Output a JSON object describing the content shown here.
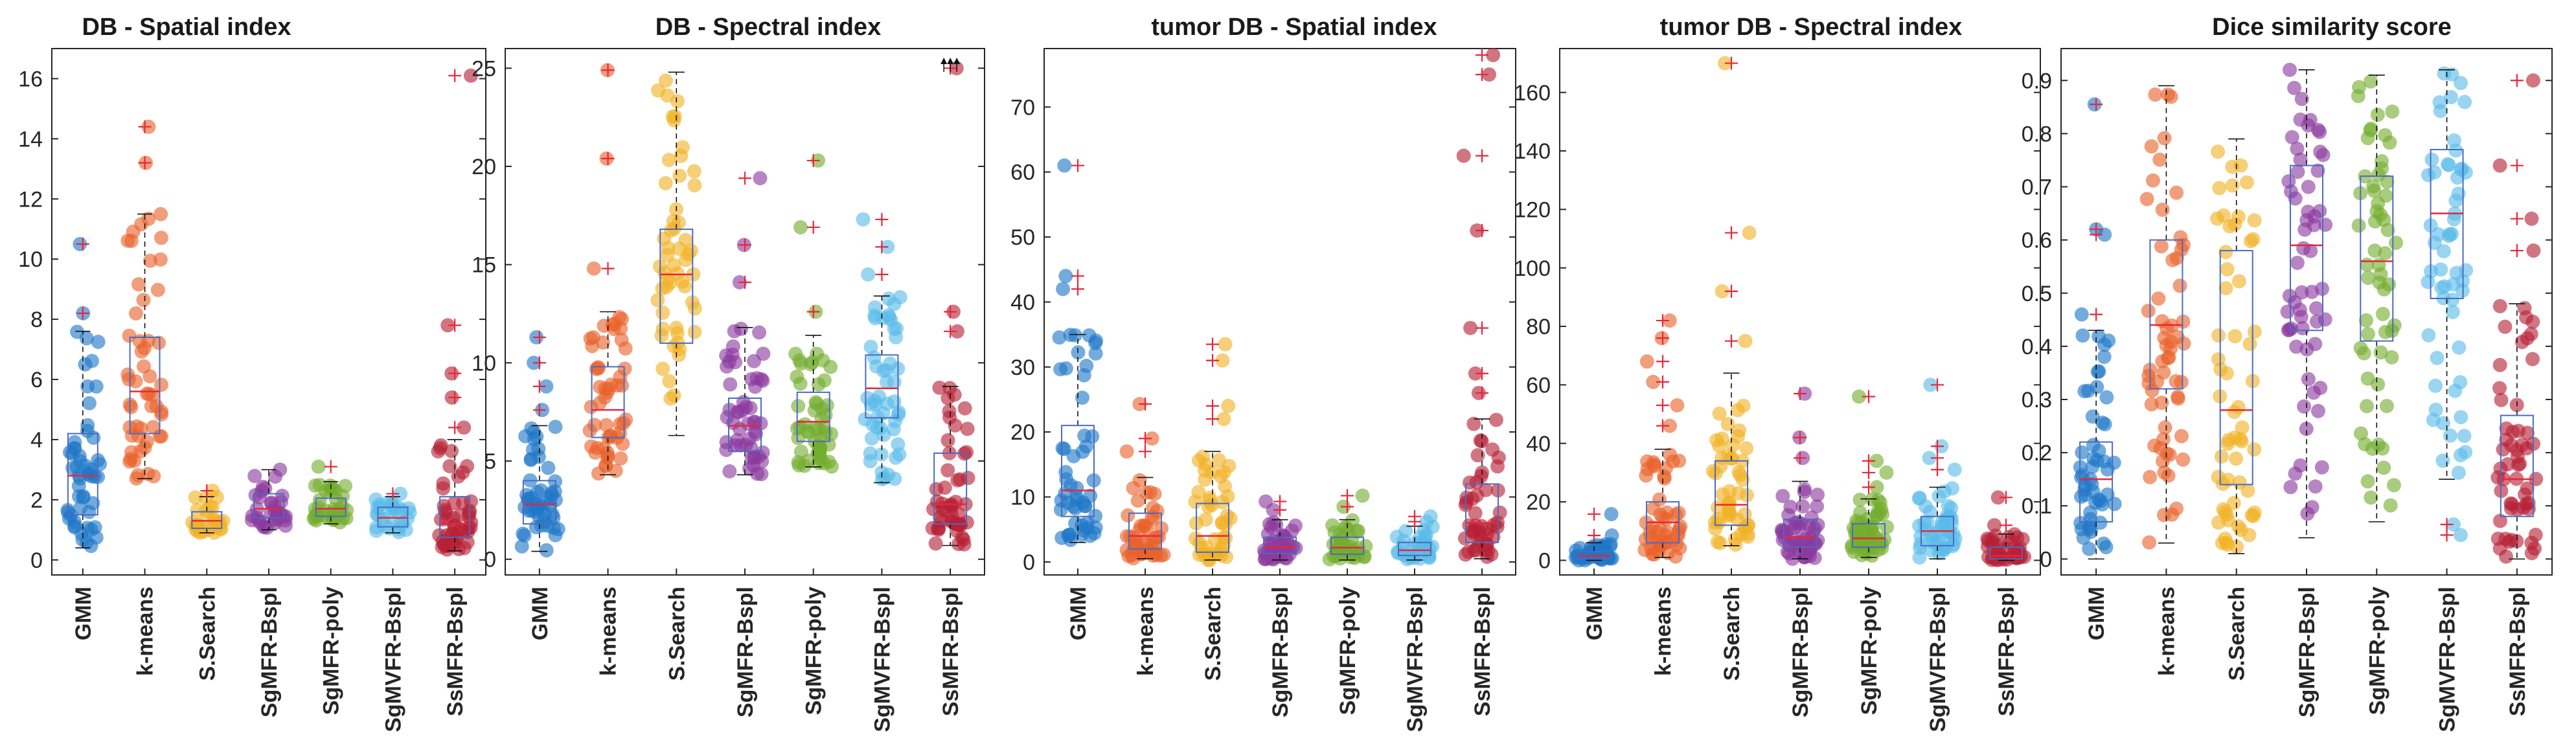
{
  "figure": {
    "methods": [
      "GMM",
      "k-means",
      "S.Search",
      "SgMFR-Bspl",
      "SgMFR-poly",
      "SgMVFR-Bspl",
      "SsMFR-Bspl"
    ],
    "method_colors": [
      "#1f77c8",
      "#e8622b",
      "#f1b125",
      "#8b3a9e",
      "#74ad2e",
      "#5bbce8",
      "#b72135"
    ],
    "median_color": "#e8263a",
    "box_color": "#4a6bc2",
    "outlier_color": "#e8263a"
  },
  "chart_data": [
    {
      "type": "box-scatter",
      "title": "DB - Spatial index",
      "ylim": [
        -0.5,
        17
      ],
      "yticks": [
        0,
        2,
        4,
        6,
        8,
        10,
        12,
        14,
        16
      ],
      "series": [
        {
          "name": "GMM",
          "q1": 1.5,
          "median": 2.8,
          "q3": 4.2,
          "whisker_low": 0.4,
          "whisker_high": 7.6,
          "min": 0.4,
          "max": 10.6,
          "outliers": [
            8.2,
            10.5
          ],
          "n": 55
        },
        {
          "name": "k-means",
          "q1": 4.2,
          "median": 5.6,
          "q3": 7.4,
          "whisker_low": 2.7,
          "whisker_high": 11.5,
          "min": 2.7,
          "max": 14.4,
          "outliers": [
            13.2,
            14.4
          ],
          "n": 55
        },
        {
          "name": "S.Search",
          "q1": 1.05,
          "median": 1.3,
          "q3": 1.6,
          "whisker_low": 0.9,
          "whisker_high": 2.1,
          "min": 0.9,
          "max": 2.4,
          "outliers": [
            2.3
          ],
          "n": 30
        },
        {
          "name": "SgMFR-Bspl",
          "q1": 1.4,
          "median": 1.7,
          "q3": 2.2,
          "whisker_low": 1.0,
          "whisker_high": 3.0,
          "min": 1.0,
          "max": 3.3,
          "outliers": [],
          "n": 35
        },
        {
          "name": "SgMFR-poly",
          "q1": 1.45,
          "median": 1.7,
          "q3": 2.05,
          "whisker_low": 1.2,
          "whisker_high": 2.6,
          "min": 1.2,
          "max": 3.1,
          "outliers": [
            3.1
          ],
          "n": 35
        },
        {
          "name": "SgMVFR-Bspl",
          "q1": 1.1,
          "median": 1.4,
          "q3": 1.75,
          "whisker_low": 0.9,
          "whisker_high": 2.1,
          "min": 0.9,
          "max": 2.6,
          "outliers": [
            2.2
          ],
          "n": 30
        },
        {
          "name": "SsMFR-Bspl",
          "q1": 0.75,
          "median": 1.2,
          "q3": 2.1,
          "whisker_low": 0.3,
          "whisker_high": 4.0,
          "min": 0.3,
          "max": 16.2,
          "outliers": [
            4.4,
            5.4,
            6.2,
            7.8,
            16.1
          ],
          "n": 55
        }
      ]
    },
    {
      "type": "box-scatter",
      "title": "DB - Spectral index",
      "ylim": [
        -0.8,
        26
      ],
      "yticks": [
        0,
        5,
        10,
        15,
        20,
        25
      ],
      "series": [
        {
          "name": "GMM",
          "q1": 1.8,
          "median": 2.8,
          "q3": 4.0,
          "whisker_low": 0.4,
          "whisker_high": 6.8,
          "min": 0.4,
          "max": 11.4,
          "outliers": [
            7.6,
            8.8,
            10.0,
            11.3
          ],
          "n": 55
        },
        {
          "name": "k-means",
          "q1": 6.2,
          "median": 7.6,
          "q3": 9.8,
          "whisker_low": 4.3,
          "whisker_high": 12.6,
          "min": 4.3,
          "max": 25.0,
          "outliers": [
            14.8,
            20.4,
            24.9
          ],
          "n": 55
        },
        {
          "name": "S.Search",
          "q1": 11.0,
          "median": 14.5,
          "q3": 16.8,
          "whisker_low": 6.3,
          "whisker_high": 24.8,
          "min": 6.3,
          "max": 24.8,
          "outliers": [],
          "n": 55
        },
        {
          "name": "SgMFR-Bspl",
          "q1": 5.5,
          "median": 6.8,
          "q3": 8.2,
          "whisker_low": 4.3,
          "whisker_high": 11.8,
          "min": 4.3,
          "max": 19.5,
          "outliers": [
            14.1,
            16.0,
            19.4
          ],
          "n": 55
        },
        {
          "name": "SgMFR-poly",
          "q1": 6.0,
          "median": 7.0,
          "q3": 8.5,
          "whisker_low": 4.7,
          "whisker_high": 11.4,
          "min": 4.7,
          "max": 20.3,
          "outliers": [
            12.6,
            16.9,
            20.3
          ],
          "n": 55
        },
        {
          "name": "SgMVFR-Bspl",
          "q1": 7.2,
          "median": 8.7,
          "q3": 10.4,
          "whisker_low": 3.9,
          "whisker_high": 13.4,
          "min": 3.9,
          "max": 17.5,
          "outliers": [
            14.5,
            15.9,
            17.3
          ],
          "n": 55
        },
        {
          "name": "SsMFR-Bspl",
          "q1": 1.8,
          "median": 2.8,
          "q3": 5.4,
          "whisker_low": 0.7,
          "whisker_high": 8.8,
          "min": 0.7,
          "max": 25.0,
          "outliers": [
            11.6,
            12.6,
            25.0
          ],
          "n": 55,
          "clipped_at_top": true
        }
      ]
    },
    {
      "type": "box-scatter",
      "title": "tumor DB - Spatial index",
      "ylim": [
        -2,
        79
      ],
      "yticks": [
        0,
        10,
        20,
        30,
        40,
        50,
        60,
        70
      ],
      "series": [
        {
          "name": "GMM",
          "q1": 7.0,
          "median": 11.0,
          "q3": 21.0,
          "whisker_low": 3.0,
          "whisker_high": 35.0,
          "min": 3.0,
          "max": 61.0,
          "outliers": [
            42.0,
            44.0,
            61.0
          ],
          "n": 55
        },
        {
          "name": "k-means",
          "q1": 2.0,
          "median": 4.0,
          "q3": 7.5,
          "whisker_low": 0.5,
          "whisker_high": 13.0,
          "min": 0.5,
          "max": 24.5,
          "outliers": [
            17.0,
            19.0,
            24.3
          ],
          "n": 50
        },
        {
          "name": "S.Search",
          "q1": 1.5,
          "median": 4.0,
          "q3": 9.0,
          "whisker_low": 0.3,
          "whisker_high": 17.0,
          "min": 0.3,
          "max": 34.0,
          "outliers": [
            22.0,
            24.0,
            31.0,
            33.5
          ],
          "n": 50
        },
        {
          "name": "SgMFR-Bspl",
          "q1": 1.3,
          "median": 2.3,
          "q3": 3.8,
          "whisker_low": 0.3,
          "whisker_high": 6.5,
          "min": 0.3,
          "max": 9.5,
          "outliers": [
            8.0,
            9.3
          ],
          "n": 40
        },
        {
          "name": "SgMFR-poly",
          "q1": 1.2,
          "median": 2.2,
          "q3": 3.8,
          "whisker_low": 0.3,
          "whisker_high": 6.5,
          "min": 0.3,
          "max": 10.5,
          "outliers": [
            8.5,
            10.2
          ],
          "n": 40
        },
        {
          "name": "SgMVFR-Bspl",
          "q1": 1.0,
          "median": 1.8,
          "q3": 3.0,
          "whisker_low": 0.3,
          "whisker_high": 5.5,
          "min": 0.3,
          "max": 7.2,
          "outliers": [
            6.2,
            7.0
          ],
          "n": 35
        },
        {
          "name": "SsMFR-Bspl",
          "q1": 3.0,
          "median": 6.0,
          "q3": 12.0,
          "whisker_low": 0.5,
          "whisker_high": 22.0,
          "min": 0.5,
          "max": 78.0,
          "outliers": [
            26.0,
            29.0,
            36.0,
            51.0,
            62.5,
            75.0,
            78.0
          ],
          "n": 55
        }
      ]
    },
    {
      "type": "box-scatter",
      "title": "tumor DB - Spectral index",
      "ylim": [
        -5,
        175
      ],
      "yticks": [
        0,
        20,
        40,
        60,
        80,
        100,
        120,
        140,
        160
      ],
      "series": [
        {
          "name": "GMM",
          "q1": 0.5,
          "median": 1.5,
          "q3": 3.0,
          "whisker_low": 0.0,
          "whisker_high": 6.0,
          "min": 0.0,
          "max": 16.0,
          "outliers": [
            8.5,
            15.8
          ],
          "n": 45
        },
        {
          "name": "k-means",
          "q1": 6.0,
          "median": 13.0,
          "q3": 20.0,
          "whisker_low": 1.0,
          "whisker_high": 38.0,
          "min": 1.0,
          "max": 82.0,
          "outliers": [
            46.0,
            53.0,
            61.0,
            68.0,
            76.0,
            82.0
          ],
          "n": 55
        },
        {
          "name": "S.Search",
          "q1": 12.0,
          "median": 19.0,
          "q3": 34.0,
          "whisker_low": 5.0,
          "whisker_high": 64.0,
          "min": 5.0,
          "max": 170.0,
          "outliers": [
            75.0,
            92.0,
            112.0,
            170.0
          ],
          "n": 55
        },
        {
          "name": "SgMFR-Bspl",
          "q1": 4.5,
          "median": 8.0,
          "q3": 14.0,
          "whisker_low": 0.5,
          "whisker_high": 27.0,
          "min": 0.5,
          "max": 57.0,
          "outliers": [
            35.0,
            42.0,
            57.0
          ],
          "n": 55
        },
        {
          "name": "SgMFR-poly",
          "q1": 4.5,
          "median": 7.5,
          "q3": 12.5,
          "whisker_low": 1.0,
          "whisker_high": 21.0,
          "min": 1.0,
          "max": 56.0,
          "outliers": [
            25.0,
            30.0,
            34.0,
            56.0
          ],
          "n": 55
        },
        {
          "name": "SgMVFR-Bspl",
          "q1": 5.0,
          "median": 10.0,
          "q3": 15.0,
          "whisker_low": 0.5,
          "whisker_high": 25.0,
          "min": 0.5,
          "max": 61.0,
          "outliers": [
            31.0,
            35.0,
            39.0,
            60.0
          ],
          "n": 50
        },
        {
          "name": "SsMFR-Bspl",
          "q1": 0.5,
          "median": 1.5,
          "q3": 4.5,
          "whisker_low": 0.0,
          "whisker_high": 9.0,
          "min": 0.0,
          "max": 22.0,
          "outliers": [
            12.0,
            21.5
          ],
          "n": 40
        }
      ]
    },
    {
      "type": "box-scatter",
      "title": "Dice similarity score",
      "ylim": [
        -0.03,
        0.96
      ],
      "yticks": [
        0,
        0.1,
        0.2,
        0.3,
        0.4,
        0.5,
        0.6,
        0.7,
        0.8,
        0.9
      ],
      "series": [
        {
          "name": "GMM",
          "q1": 0.07,
          "median": 0.15,
          "q3": 0.22,
          "whisker_low": 0.0,
          "whisker_high": 0.43,
          "min": 0.0,
          "max": 0.86,
          "outliers": [
            0.46,
            0.61,
            0.62,
            0.855
          ],
          "n": 55
        },
        {
          "name": "k-means",
          "q1": 0.32,
          "median": 0.44,
          "q3": 0.6,
          "whisker_low": 0.03,
          "whisker_high": 0.89,
          "min": 0.03,
          "max": 0.89,
          "outliers": [],
          "n": 60
        },
        {
          "name": "S.Search",
          "q1": 0.14,
          "median": 0.28,
          "q3": 0.58,
          "whisker_low": 0.01,
          "whisker_high": 0.79,
          "min": 0.01,
          "max": 0.79,
          "outliers": [],
          "n": 60
        },
        {
          "name": "SgMFR-Bspl",
          "q1": 0.43,
          "median": 0.59,
          "q3": 0.74,
          "whisker_low": 0.04,
          "whisker_high": 0.92,
          "min": 0.04,
          "max": 0.92,
          "outliers": [],
          "n": 60
        },
        {
          "name": "SgMFR-poly",
          "q1": 0.41,
          "median": 0.56,
          "q3": 0.72,
          "whisker_low": 0.07,
          "whisker_high": 0.91,
          "min": 0.07,
          "max": 0.91,
          "outliers": [],
          "n": 60
        },
        {
          "name": "SgMVFR-Bspl",
          "q1": 0.49,
          "median": 0.65,
          "q3": 0.77,
          "whisker_low": 0.15,
          "whisker_high": 0.92,
          "min": 0.04,
          "max": 0.92,
          "outliers": [
            0.045,
            0.065
          ],
          "n": 60
        },
        {
          "name": "SsMFR-Bspl",
          "q1": 0.08,
          "median": 0.15,
          "q3": 0.27,
          "whisker_low": 0.0,
          "whisker_high": 0.48,
          "min": 0.0,
          "max": 0.9,
          "outliers": [
            0.58,
            0.64,
            0.74,
            0.9
          ],
          "n": 60
        }
      ]
    }
  ]
}
